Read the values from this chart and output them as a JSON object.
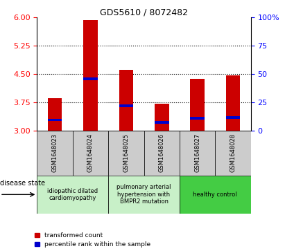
{
  "title": "GDS5610 / 8072482",
  "samples": [
    "GSM1648023",
    "GSM1648024",
    "GSM1648025",
    "GSM1648026",
    "GSM1648027",
    "GSM1648028"
  ],
  "transformed_count": [
    3.85,
    5.93,
    4.62,
    3.72,
    4.38,
    4.47
  ],
  "percentile_rank": [
    3.28,
    4.38,
    3.65,
    3.22,
    3.32,
    3.35
  ],
  "ymin": 3.0,
  "ymax": 6.0,
  "yticks_left": [
    3,
    3.75,
    4.5,
    5.25,
    6
  ],
  "yticks_right_vals": [
    0,
    25,
    50,
    75,
    100
  ],
  "yticks_right_labels": [
    "0",
    "25",
    "50",
    "75",
    "100%"
  ],
  "bar_color": "#cc0000",
  "blue_color": "#0000cc",
  "disease_state_label": "disease state",
  "legend_labels": [
    "transformed count",
    "percentile rank within the sample"
  ],
  "legend_colors": [
    "#cc0000",
    "#0000cc"
  ],
  "bar_width": 0.4,
  "sample_bg_color": "#cccccc",
  "group_defs": [
    {
      "span": [
        0,
        2
      ],
      "label": "idiopathic dilated\ncardiomyopathy",
      "color": "#c8f0c8"
    },
    {
      "span": [
        2,
        4
      ],
      "label": "pulmonary arterial\nhypertension with\nBMPR2 mutation",
      "color": "#c8f0c8"
    },
    {
      "span": [
        4,
        6
      ],
      "label": "healthy control",
      "color": "#44cc44"
    }
  ],
  "title_fontsize": 9,
  "tick_fontsize": 8,
  "label_fontsize": 6.5
}
